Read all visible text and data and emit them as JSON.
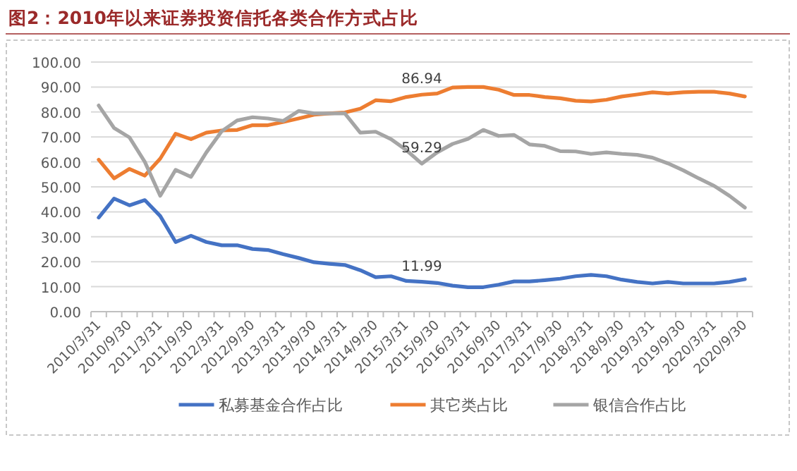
{
  "chart_data": {
    "type": "line",
    "title": "图2：2010年以来证券投资信托各类合作方式占比",
    "categories": [
      "2010/3/31",
      null,
      "2010/9/30",
      null,
      "2011/3/31",
      null,
      "2011/9/30",
      null,
      "2012/3/31",
      null,
      "2012/9/30",
      null,
      "2013/3/31",
      null,
      "2013/9/30",
      null,
      "2014/3/31",
      null,
      "2014/9/30",
      null,
      "2015/3/31",
      null,
      "2015/9/30",
      null,
      "2016/3/31",
      null,
      "2016/9/30",
      null,
      "2017/3/31",
      null,
      "2017/9/30",
      null,
      "2018/3/31",
      null,
      "2018/9/30",
      null,
      "2019/3/31",
      null,
      "2019/9/30",
      null,
      "2020/3/31",
      null,
      "2020/9/30"
    ],
    "series": [
      {
        "name": "私募基金合作占比",
        "color": "#4472c4",
        "values": [
          37.7,
          45.3,
          42.6,
          44.7,
          38.3,
          27.9,
          30.4,
          27.9,
          26.6,
          26.6,
          25.1,
          24.7,
          23,
          21.5,
          19.8,
          19.2,
          18.7,
          16.6,
          13.8,
          14.2,
          12.3,
          11.99,
          11.5,
          10.4,
          9.8,
          9.8,
          10.8,
          12.1,
          12.1,
          12.6,
          13.2,
          14.2,
          14.7,
          14.2,
          12.8,
          11.9,
          11.3,
          11.9,
          11.3,
          11.3,
          11.3,
          11.9,
          13
        ],
        "value_labels": [
          null,
          null,
          null,
          null,
          null,
          null,
          null,
          null,
          null,
          null,
          null,
          null,
          null,
          null,
          null,
          null,
          null,
          null,
          null,
          null,
          null,
          "11.99",
          null,
          null,
          null,
          null,
          null,
          null,
          null,
          null,
          null,
          null,
          null,
          null,
          null,
          null,
          null,
          null,
          null,
          null,
          null,
          null,
          null
        ]
      },
      {
        "name": "其它类占比",
        "color": "#ed7d31",
        "values": [
          60.9,
          53.4,
          57.2,
          54.5,
          61.3,
          71.3,
          69.1,
          71.7,
          72.6,
          72.8,
          74.7,
          74.7,
          76,
          77.4,
          78.9,
          79.4,
          79.8,
          81.3,
          84.7,
          84.3,
          86,
          86.94,
          87.4,
          89.8,
          90,
          90,
          88.9,
          86.8,
          86.8,
          86,
          85.5,
          84.5,
          84.2,
          84.9,
          86.2,
          87,
          87.9,
          87.4,
          87.9,
          88.1,
          88.1,
          87.4,
          86.2
        ],
        "value_labels": [
          null,
          null,
          null,
          null,
          null,
          null,
          null,
          null,
          null,
          null,
          null,
          null,
          null,
          null,
          null,
          null,
          null,
          null,
          null,
          null,
          null,
          "86.94",
          null,
          null,
          null,
          null,
          null,
          null,
          null,
          null,
          null,
          null,
          null,
          null,
          null,
          null,
          null,
          null,
          null,
          null,
          null,
          null,
          null
        ]
      },
      {
        "name": "银信合作占比",
        "color": "#a5a5a5",
        "values": [
          82.6,
          73.6,
          69.8,
          60,
          46.4,
          56.8,
          54,
          63.8,
          72.3,
          76.6,
          77.9,
          77.4,
          76.4,
          80.4,
          79.4,
          79.4,
          79.4,
          71.7,
          72.1,
          69.1,
          64.7,
          59.29,
          63.8,
          67.2,
          69.2,
          72.8,
          70.4,
          70.8,
          67,
          66.4,
          64.3,
          64.2,
          63.2,
          63.8,
          63.2,
          62.8,
          61.7,
          59.4,
          56.6,
          53.4,
          50.4,
          46.4,
          41.7
        ],
        "value_labels": [
          null,
          null,
          null,
          null,
          null,
          null,
          null,
          null,
          null,
          null,
          null,
          null,
          null,
          null,
          null,
          null,
          null,
          null,
          null,
          null,
          null,
          "59.29",
          null,
          null,
          null,
          null,
          null,
          null,
          null,
          null,
          null,
          null,
          null,
          null,
          null,
          null,
          null,
          null,
          null,
          null,
          null,
          null,
          null
        ]
      }
    ],
    "ylim": [
      0,
      100
    ],
    "yticks": [
      {
        "value": 0,
        "label": "0.00"
      },
      {
        "value": 10,
        "label": "10.00"
      },
      {
        "value": 20,
        "label": "20.00"
      },
      {
        "value": 30,
        "label": "30.00"
      },
      {
        "value": 40,
        "label": "40.00"
      },
      {
        "value": 50,
        "label": "50.00"
      },
      {
        "value": 60,
        "label": "60.00"
      },
      {
        "value": 70,
        "label": "70.00"
      },
      {
        "value": 80,
        "label": "80.00"
      },
      {
        "value": 90,
        "label": "90.00"
      },
      {
        "value": 100,
        "label": "100.00"
      }
    ],
    "grid": "y",
    "legend": "bottom",
    "marker": "none",
    "line_style": "solid"
  }
}
